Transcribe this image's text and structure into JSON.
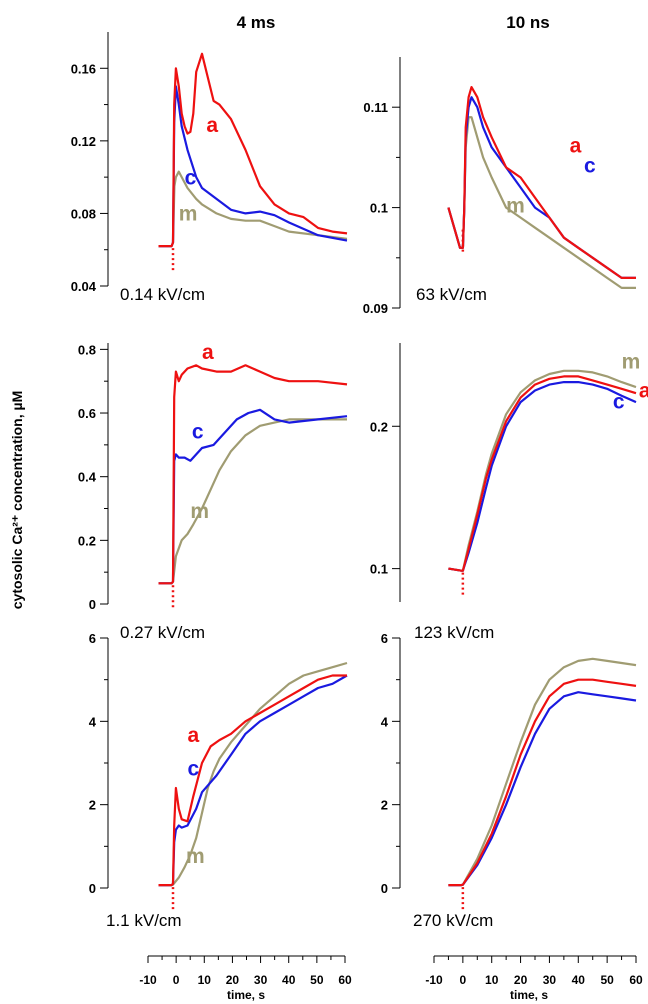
{
  "colors": {
    "a": "#ee1111",
    "c": "#1a1ae0",
    "m": "#a09c72",
    "marker": "#ee1111"
  },
  "column_titles": [
    "4 ms",
    "10 ns"
  ],
  "y_axis_label": "cytosolic Ca²⁺ concentration, µM",
  "x_axis": {
    "label": "time, s",
    "ticks": [
      -10,
      0,
      10,
      20,
      30,
      40,
      50,
      60
    ],
    "range": [
      -10,
      60
    ]
  },
  "chart_data": [
    {
      "type": "line",
      "panel": "4ms-0.14",
      "title": "4 ms",
      "field_label": "0.14 kV/cm",
      "xlabel": "time, s",
      "ylabel": "cytosolic Ca²⁺ concentration, µM",
      "ylim": [
        0.04,
        0.18
      ],
      "yticks": [
        "0.04",
        "0.08",
        "0.12",
        "0.16"
      ],
      "minor_yticks": [
        0.06,
        0.1,
        0.14
      ],
      "series": [
        {
          "name": "a",
          "x": [
            -5,
            -0.5,
            0,
            0.4,
            1,
            2,
            3,
            4,
            5,
            6,
            7,
            8,
            10,
            12,
            14,
            16,
            20,
            25,
            30,
            35,
            40,
            45,
            50,
            55,
            60
          ],
          "y": [
            0.062,
            0.062,
            0.064,
            0.14,
            0.16,
            0.15,
            0.135,
            0.128,
            0.124,
            0.125,
            0.135,
            0.158,
            0.168,
            0.155,
            0.142,
            0.14,
            0.132,
            0.115,
            0.095,
            0.085,
            0.08,
            0.078,
            0.072,
            0.07,
            0.069
          ]
        },
        {
          "name": "c",
          "x": [
            -5,
            -0.5,
            0,
            0.4,
            1,
            2,
            3,
            5,
            8,
            10,
            15,
            20,
            25,
            30,
            35,
            40,
            50,
            60
          ],
          "y": [
            0.062,
            0.062,
            0.064,
            0.13,
            0.15,
            0.14,
            0.128,
            0.115,
            0.1,
            0.094,
            0.088,
            0.082,
            0.08,
            0.081,
            0.079,
            0.075,
            0.068,
            0.065
          ]
        },
        {
          "name": "m",
          "x": [
            -5,
            -0.5,
            0,
            0.5,
            1,
            2,
            3,
            5,
            8,
            10,
            15,
            20,
            25,
            30,
            35,
            40,
            50,
            60
          ],
          "y": [
            0.062,
            0.062,
            0.064,
            0.095,
            0.1,
            0.103,
            0.1,
            0.094,
            0.088,
            0.085,
            0.08,
            0.077,
            0.076,
            0.076,
            0.073,
            0.07,
            0.068,
            0.066
          ]
        }
      ],
      "labels": [
        {
          "text": "a",
          "series": "a",
          "x": 11.5,
          "y": 0.125
        },
        {
          "text": "c",
          "series": "c",
          "x": 4,
          "y": 0.096
        },
        {
          "text": "m",
          "series": "m",
          "x": 2,
          "y": 0.076
        }
      ]
    },
    {
      "type": "line",
      "panel": "10ns-63",
      "title": "10 ns",
      "field_label": "63 kV/cm",
      "xlabel": "time, s",
      "ylabel": "cytosolic Ca²⁺ concentration, µM",
      "ylim": [
        0.09,
        0.115
      ],
      "yticks": [
        "0.09",
        "0.1",
        "0.11"
      ],
      "minor_yticks": [
        0.095,
        0.105
      ],
      "series": [
        {
          "name": "a",
          "x": [
            -5,
            -3,
            -1,
            0,
            0.5,
            1,
            2,
            3,
            5,
            7,
            10,
            15,
            20,
            25,
            30,
            35,
            40,
            45,
            50,
            55,
            60
          ],
          "y": [
            0.1,
            0.098,
            0.096,
            0.096,
            0.1,
            0.108,
            0.111,
            0.112,
            0.111,
            0.109,
            0.107,
            0.104,
            0.103,
            0.101,
            0.099,
            0.097,
            0.096,
            0.095,
            0.094,
            0.093,
            0.093
          ]
        },
        {
          "name": "c",
          "x": [
            -5,
            -3,
            -1,
            0,
            0.5,
            1,
            2,
            3,
            5,
            7,
            10,
            15,
            20,
            25,
            30,
            35,
            40,
            45,
            50,
            55,
            60
          ],
          "y": [
            0.1,
            0.098,
            0.096,
            0.096,
            0.1,
            0.107,
            0.11,
            0.111,
            0.11,
            0.108,
            0.106,
            0.104,
            0.102,
            0.1,
            0.099,
            0.097,
            0.096,
            0.095,
            0.094,
            0.093,
            0.093
          ]
        },
        {
          "name": "m",
          "x": [
            -5,
            -3,
            -1,
            0,
            0.5,
            1,
            2,
            3,
            5,
            7,
            10,
            15,
            20,
            25,
            30,
            35,
            40,
            45,
            50,
            55,
            60
          ],
          "y": [
            0.1,
            0.098,
            0.096,
            0.096,
            0.1,
            0.106,
            0.109,
            0.109,
            0.107,
            0.105,
            0.103,
            0.1,
            0.099,
            0.098,
            0.097,
            0.096,
            0.095,
            0.094,
            0.093,
            0.092,
            0.092
          ]
        }
      ],
      "labels": [
        {
          "text": "a",
          "series": "a",
          "x": 37,
          "y": 0.1055
        },
        {
          "text": "c",
          "series": "c",
          "x": 42,
          "y": 0.1035
        },
        {
          "text": "m",
          "series": "m",
          "x": 15,
          "y": 0.0995
        }
      ]
    },
    {
      "type": "line",
      "panel": "4ms-0.27",
      "field_label": "0.27 kV/cm",
      "xlabel": "time, s",
      "ylabel": "cytosolic Ca²⁺ concentration, µM",
      "ylim": [
        0,
        0.82
      ],
      "yticks": [
        "0",
        "0.2",
        "0.4",
        "0.6",
        "0.8"
      ],
      "minor_yticks": [
        0.1,
        0.3,
        0.5,
        0.7
      ],
      "series": [
        {
          "name": "a",
          "x": [
            -5,
            -0.5,
            0,
            0.4,
            1,
            2,
            3,
            5,
            8,
            10,
            15,
            20,
            25,
            30,
            35,
            40,
            50,
            60
          ],
          "y": [
            0.065,
            0.065,
            0.07,
            0.65,
            0.73,
            0.7,
            0.72,
            0.74,
            0.75,
            0.74,
            0.73,
            0.73,
            0.75,
            0.73,
            0.71,
            0.7,
            0.7,
            0.69
          ]
        },
        {
          "name": "c",
          "x": [
            -5,
            -0.5,
            0,
            0.4,
            1,
            2,
            4,
            6,
            8,
            10,
            14,
            18,
            22,
            26,
            30,
            35,
            40,
            50,
            60
          ],
          "y": [
            0.065,
            0.065,
            0.07,
            0.45,
            0.47,
            0.46,
            0.46,
            0.45,
            0.47,
            0.49,
            0.5,
            0.54,
            0.58,
            0.6,
            0.61,
            0.58,
            0.57,
            0.58,
            0.59
          ]
        },
        {
          "name": "m",
          "x": [
            -5,
            -0.5,
            0,
            1,
            3,
            5,
            7,
            10,
            13,
            16,
            20,
            25,
            30,
            35,
            40,
            50,
            60
          ],
          "y": [
            0.065,
            0.065,
            0.07,
            0.15,
            0.2,
            0.22,
            0.25,
            0.3,
            0.36,
            0.42,
            0.48,
            0.53,
            0.56,
            0.57,
            0.58,
            0.58,
            0.58
          ]
        }
      ],
      "labels": [
        {
          "text": "a",
          "series": "a",
          "x": 10,
          "y": 0.77
        },
        {
          "text": "c",
          "series": "c",
          "x": 6.5,
          "y": 0.52
        },
        {
          "text": "m",
          "series": "m",
          "x": 6,
          "y": 0.27
        }
      ]
    },
    {
      "type": "line",
      "panel": "10ns-123",
      "field_label": "123 kV/cm",
      "xlabel": "time, s",
      "ylabel": "cytosolic Ca²⁺ concentration, µM",
      "ylim": [
        0.085,
        0.3
      ],
      "log_scale_y": true,
      "yticks": [
        "0.1",
        "0.2"
      ],
      "minor_yticks": [],
      "series": [
        {
          "name": "a",
          "x": [
            -5,
            -0.5,
            0,
            2,
            5,
            8,
            10,
            15,
            20,
            25,
            30,
            35,
            40,
            45,
            50,
            55,
            60
          ],
          "y": [
            0.1,
            0.099,
            0.099,
            0.11,
            0.13,
            0.155,
            0.17,
            0.205,
            0.23,
            0.245,
            0.252,
            0.255,
            0.255,
            0.25,
            0.245,
            0.24,
            0.235
          ]
        },
        {
          "name": "c",
          "x": [
            -5,
            -0.5,
            0,
            2,
            5,
            8,
            10,
            15,
            20,
            25,
            30,
            35,
            40,
            45,
            50,
            55,
            60
          ],
          "y": [
            0.1,
            0.099,
            0.099,
            0.108,
            0.125,
            0.148,
            0.165,
            0.2,
            0.225,
            0.238,
            0.245,
            0.248,
            0.248,
            0.245,
            0.24,
            0.232,
            0.225
          ]
        },
        {
          "name": "m",
          "x": [
            -5,
            -0.5,
            0,
            2,
            5,
            8,
            10,
            15,
            20,
            25,
            30,
            35,
            40,
            45,
            50,
            55,
            60
          ],
          "y": [
            0.1,
            0.099,
            0.099,
            0.112,
            0.132,
            0.158,
            0.175,
            0.212,
            0.236,
            0.25,
            0.258,
            0.262,
            0.262,
            0.26,
            0.255,
            0.248,
            0.242
          ]
        }
      ],
      "labels": [
        {
          "text": "m",
          "series": "m",
          "x": 55,
          "y": 0.265
        },
        {
          "text": "a",
          "series": "a",
          "x": 61,
          "y": 0.23
        },
        {
          "text": "c",
          "series": "c",
          "x": 52,
          "y": 0.218
        }
      ]
    },
    {
      "type": "line",
      "panel": "4ms-1.1",
      "field_label": "1.1 kV/cm",
      "xlabel": "time, s",
      "ylabel": "cytosolic Ca²⁺ concentration, µM",
      "ylim": [
        0,
        6
      ],
      "yticks": [
        "0",
        "2",
        "4",
        "6"
      ],
      "minor_yticks": [
        1,
        3,
        5
      ],
      "series": [
        {
          "name": "a",
          "x": [
            -5,
            -0.5,
            0,
            0.4,
            1,
            2,
            3,
            5,
            7,
            10,
            13,
            16,
            20,
            25,
            30,
            35,
            40,
            45,
            50,
            55,
            60
          ],
          "y": [
            0.07,
            0.07,
            0.1,
            1.5,
            2.4,
            1.9,
            1.65,
            1.6,
            2.2,
            3.0,
            3.4,
            3.55,
            3.7,
            4.0,
            4.2,
            4.4,
            4.6,
            4.8,
            5.0,
            5.1,
            5.1
          ]
        },
        {
          "name": "c",
          "x": [
            -5,
            -0.5,
            0,
            0.4,
            1,
            2,
            3,
            5,
            8,
            10,
            15,
            20,
            25,
            30,
            35,
            40,
            45,
            50,
            55,
            60
          ],
          "y": [
            0.07,
            0.07,
            0.1,
            1.1,
            1.4,
            1.5,
            1.45,
            1.5,
            1.9,
            2.3,
            2.7,
            3.2,
            3.7,
            4.0,
            4.2,
            4.4,
            4.6,
            4.8,
            4.9,
            5.1
          ]
        },
        {
          "name": "m",
          "x": [
            -5,
            -0.5,
            0,
            2,
            4,
            6,
            8,
            10,
            12,
            14,
            16,
            20,
            25,
            30,
            35,
            40,
            45,
            50,
            55,
            60
          ],
          "y": [
            0.07,
            0.07,
            0.08,
            0.25,
            0.5,
            0.8,
            1.2,
            1.8,
            2.4,
            2.8,
            3.1,
            3.5,
            3.9,
            4.3,
            4.6,
            4.9,
            5.1,
            5.2,
            5.3,
            5.4
          ]
        }
      ],
      "labels": [
        {
          "text": "a",
          "series": "a",
          "x": 5,
          "y": 3.5
        },
        {
          "text": "c",
          "series": "c",
          "x": 5,
          "y": 2.7
        },
        {
          "text": "m",
          "series": "m",
          "x": 4.5,
          "y": 0.6
        }
      ]
    },
    {
      "type": "line",
      "panel": "10ns-270",
      "field_label": "270 kV/cm",
      "xlabel": "time, s",
      "ylabel": "cytosolic Ca²⁺ concentration, µM",
      "ylim": [
        0,
        6
      ],
      "yticks": [
        "0",
        "2",
        "4",
        "6"
      ],
      "minor_yticks": [
        1,
        3,
        5
      ],
      "series": [
        {
          "name": "a",
          "x": [
            -5,
            -0.5,
            0,
            5,
            10,
            15,
            20,
            25,
            30,
            35,
            40,
            45,
            50,
            55,
            60
          ],
          "y": [
            0.07,
            0.07,
            0.08,
            0.6,
            1.3,
            2.2,
            3.2,
            4.0,
            4.6,
            4.9,
            5.0,
            5.0,
            4.95,
            4.9,
            4.85
          ]
        },
        {
          "name": "c",
          "x": [
            -5,
            -0.5,
            0,
            5,
            10,
            15,
            20,
            25,
            30,
            35,
            40,
            45,
            50,
            55,
            60
          ],
          "y": [
            0.07,
            0.07,
            0.08,
            0.55,
            1.2,
            2.0,
            2.9,
            3.7,
            4.3,
            4.6,
            4.7,
            4.65,
            4.6,
            4.55,
            4.5
          ]
        },
        {
          "name": "m",
          "x": [
            -5,
            -0.5,
            0,
            5,
            10,
            15,
            20,
            25,
            30,
            35,
            40,
            45,
            50,
            55,
            60
          ],
          "y": [
            0.07,
            0.07,
            0.08,
            0.7,
            1.5,
            2.5,
            3.5,
            4.4,
            5.0,
            5.3,
            5.45,
            5.5,
            5.45,
            5.4,
            5.35
          ]
        }
      ],
      "labels": []
    }
  ]
}
